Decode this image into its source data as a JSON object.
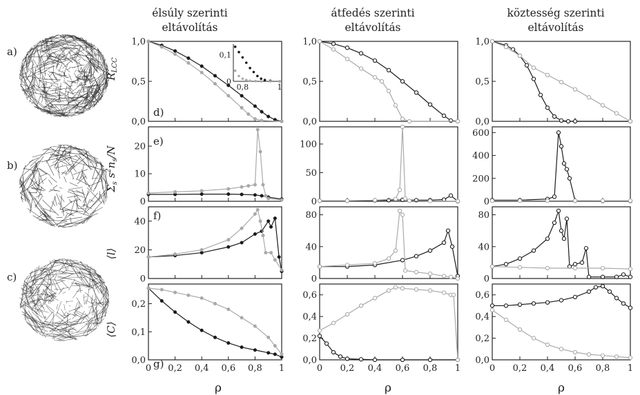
{
  "colors": {
    "black_series": "#1a1a1a",
    "gray_series": "#a9a9a9",
    "frame": "#222222"
  },
  "column_titles": [
    [
      "élsúly szerinti",
      "eltávolítás"
    ],
    [
      "átfedés szerinti",
      "eltávolítás"
    ],
    [
      "köztesség szerinti",
      "eltávolítás"
    ]
  ],
  "row_labels": [
    "R_LCC",
    "Σs s²ns/N",
    "⟨l⟩",
    "⟨C⟩"
  ],
  "panel_letters": [
    "d)",
    "e)",
    "f)",
    "g)"
  ],
  "network_labels": [
    "a)",
    "b)",
    "c)"
  ],
  "xlabel": "ρ",
  "chart_data": [
    {
      "type": "scatter",
      "panel": "R_LCC / élsúly",
      "xlim": [
        0,
        1
      ],
      "ylim": [
        0,
        1
      ],
      "xticks": [
        "0",
        "0,2",
        "0,4",
        "0,6",
        "0,8",
        "1"
      ],
      "yticks": [
        "0,0",
        "0,5",
        "1,0"
      ],
      "ytick_values": [
        0,
        0.5,
        1
      ],
      "series": [
        {
          "color": "black",
          "marker": "filled",
          "x": [
            0,
            0.1,
            0.2,
            0.3,
            0.4,
            0.5,
            0.6,
            0.7,
            0.8,
            0.85,
            0.9,
            0.95,
            1
          ],
          "y": [
            1,
            0.95,
            0.88,
            0.79,
            0.69,
            0.57,
            0.45,
            0.32,
            0.19,
            0.12,
            0.06,
            0.02,
            0
          ]
        },
        {
          "color": "gray",
          "marker": "filled",
          "x": [
            0,
            0.1,
            0.2,
            0.3,
            0.4,
            0.5,
            0.6,
            0.7,
            0.75,
            0.8,
            0.85,
            1
          ],
          "y": [
            1,
            0.93,
            0.84,
            0.73,
            0.61,
            0.47,
            0.32,
            0.17,
            0.09,
            0.03,
            0.01,
            0
          ]
        }
      ],
      "inset": {
        "xlim": [
          0.75,
          1
        ],
        "ylim": [
          0,
          0.14
        ],
        "xticks": [
          "0,8",
          "1"
        ],
        "xtick_values": [
          0.8,
          1
        ],
        "yticks": [
          "0",
          "0,1"
        ],
        "ytick_values": [
          0,
          0.1
        ],
        "series": [
          {
            "color": "black",
            "x": [
              0.76,
              0.78,
              0.8,
              0.82,
              0.84,
              0.86,
              0.88,
              0.9,
              0.92,
              0.95,
              1
            ],
            "y": [
              0.13,
              0.11,
              0.09,
              0.07,
              0.05,
              0.035,
              0.02,
              0.01,
              0.005,
              0.002,
              0
            ]
          },
          {
            "color": "gray",
            "x": [
              0.76,
              0.78,
              0.8,
              0.82,
              0.84,
              0.87,
              0.9,
              0.95,
              1
            ],
            "y": [
              0.04,
              0.02,
              0.01,
              0.005,
              0.002,
              0.001,
              0,
              0,
              0
            ]
          }
        ]
      }
    },
    {
      "type": "scatter",
      "panel": "R_LCC / átfedés",
      "xlim": [
        0,
        1
      ],
      "ylim": [
        0,
        1
      ],
      "xticks": [
        "0",
        "0,2",
        "0,4",
        "0,6",
        "0,8",
        "1"
      ],
      "yticks": [
        "0,0",
        "0,5",
        "1,0"
      ],
      "ytick_values": [
        0,
        0.5,
        1
      ],
      "series": [
        {
          "color": "black",
          "marker": "open",
          "x": [
            0,
            0.1,
            0.2,
            0.3,
            0.4,
            0.5,
            0.6,
            0.7,
            0.8,
            0.9,
            0.95,
            1
          ],
          "y": [
            1,
            0.97,
            0.92,
            0.85,
            0.76,
            0.64,
            0.5,
            0.36,
            0.21,
            0.07,
            0.01,
            0
          ]
        },
        {
          "color": "gray",
          "marker": "open",
          "x": [
            0,
            0.1,
            0.2,
            0.3,
            0.4,
            0.45,
            0.5,
            0.55,
            0.6,
            0.65,
            1
          ],
          "y": [
            1,
            0.9,
            0.78,
            0.66,
            0.55,
            0.5,
            0.38,
            0.2,
            0.03,
            0,
            0
          ]
        }
      ]
    },
    {
      "type": "scatter",
      "panel": "R_LCC / köztesség",
      "xlim": [
        0,
        1
      ],
      "ylim": [
        0,
        1
      ],
      "xticks": [
        "0",
        "0,2",
        "0,4",
        "0,6",
        "0,8",
        "1"
      ],
      "yticks": [
        "0,0",
        "0,5",
        "1,0"
      ],
      "ytick_values": [
        0,
        0.5,
        1
      ],
      "series": [
        {
          "color": "black",
          "marker": "open",
          "x": [
            0,
            0.1,
            0.15,
            0.2,
            0.25,
            0.3,
            0.35,
            0.4,
            0.45,
            0.5,
            0.55,
            0.6,
            1
          ],
          "y": [
            1,
            0.95,
            0.9,
            0.82,
            0.7,
            0.53,
            0.33,
            0.17,
            0.06,
            0.01,
            0,
            0,
            0
          ]
        },
        {
          "color": "gray",
          "marker": "open",
          "x": [
            0,
            0.1,
            0.2,
            0.3,
            0.4,
            0.5,
            0.6,
            0.7,
            0.8,
            0.9,
            1
          ],
          "y": [
            1,
            0.93,
            0.82,
            0.67,
            0.58,
            0.49,
            0.4,
            0.3,
            0.2,
            0.1,
            0
          ]
        }
      ]
    },
    {
      "type": "scatter",
      "panel": "Σs s²ns/N / élsúly",
      "xlim": [
        0,
        1
      ],
      "ylim": [
        0,
        27
      ],
      "xticks": [
        "0",
        "0,2",
        "0,4",
        "0,6",
        "0,8",
        "1"
      ],
      "yticks": [
        "0",
        "10",
        "20"
      ],
      "ytick_values": [
        0,
        10,
        20
      ],
      "series": [
        {
          "color": "black",
          "marker": "filled",
          "x": [
            0,
            0.2,
            0.4,
            0.6,
            0.7,
            0.8,
            0.85,
            0.9,
            1
          ],
          "y": [
            2.5,
            2.5,
            2.6,
            2.6,
            2.5,
            2.3,
            2,
            1.5,
            0.8
          ]
        },
        {
          "color": "gray",
          "marker": "filled",
          "x": [
            0,
            0.2,
            0.4,
            0.6,
            0.7,
            0.75,
            0.8,
            0.82,
            0.84,
            0.86,
            0.88,
            0.9,
            1
          ],
          "y": [
            3,
            3.4,
            3.8,
            4.5,
            5.2,
            5.6,
            6,
            26,
            18,
            6,
            2,
            1,
            0.5
          ]
        }
      ]
    },
    {
      "type": "scatter",
      "panel": "Σs s²ns/N / átfedés",
      "xlim": [
        0,
        1
      ],
      "ylim": [
        0,
        130
      ],
      "xticks": [
        "0",
        "0,2",
        "0,4",
        "0,6",
        "0,8",
        "1"
      ],
      "yticks": [
        "0",
        "50",
        "100"
      ],
      "ytick_values": [
        0,
        50,
        100
      ],
      "series": [
        {
          "color": "black",
          "marker": "open",
          "x": [
            0,
            0.2,
            0.4,
            0.5,
            0.6,
            0.7,
            0.8,
            0.9,
            0.95,
            1
          ],
          "y": [
            1,
            1,
            1.5,
            2,
            2.5,
            2,
            2,
            3,
            10,
            0
          ]
        },
        {
          "color": "gray",
          "marker": "open",
          "x": [
            0,
            0.2,
            0.4,
            0.55,
            0.58,
            0.6,
            0.62,
            0.65,
            0.8,
            1
          ],
          "y": [
            1,
            1,
            2,
            4,
            20,
            130,
            5,
            1,
            0.5,
            0.3
          ]
        }
      ]
    },
    {
      "type": "scatter",
      "panel": "Σs s²ns/N / köztesség",
      "xlim": [
        0,
        1
      ],
      "ylim": [
        0,
        650
      ],
      "xticks": [
        "0",
        "0,2",
        "0,4",
        "0,6",
        "0,8",
        "1"
      ],
      "yticks": [
        "0",
        "200",
        "400",
        "600"
      ],
      "ytick_values": [
        0,
        200,
        400,
        600
      ],
      "series": [
        {
          "color": "black",
          "marker": "open",
          "x": [
            0,
            0.2,
            0.4,
            0.45,
            0.48,
            0.5,
            0.52,
            0.54,
            0.56,
            0.6,
            0.8,
            1
          ],
          "y": [
            10,
            10,
            20,
            40,
            600,
            480,
            330,
            280,
            200,
            5,
            3,
            3
          ]
        },
        {
          "color": "gray",
          "marker": "open",
          "x": [
            0,
            0.2,
            0.4,
            0.6,
            0.8,
            1
          ],
          "y": [
            5,
            5,
            5,
            5,
            5,
            5
          ]
        }
      ]
    },
    {
      "type": "scatter",
      "panel": "⟨l⟩ / élsúly",
      "xlim": [
        0,
        1
      ],
      "ylim": [
        0,
        50
      ],
      "xticks": [
        "0",
        "0,2",
        "0,4",
        "0,6",
        "0,8",
        "1"
      ],
      "yticks": [
        "0",
        "20",
        "40"
      ],
      "ytick_values": [
        0,
        20,
        40
      ],
      "series": [
        {
          "color": "black",
          "marker": "filled",
          "x": [
            0,
            0.2,
            0.4,
            0.6,
            0.7,
            0.8,
            0.85,
            0.9,
            0.92,
            0.95,
            0.98,
            1
          ],
          "y": [
            15,
            16,
            18,
            22,
            25,
            31,
            33,
            40,
            36,
            42,
            15,
            5
          ]
        },
        {
          "color": "gray",
          "marker": "filled",
          "x": [
            0,
            0.2,
            0.4,
            0.6,
            0.7,
            0.8,
            0.82,
            0.84,
            0.86,
            0.88,
            0.92,
            0.95,
            1
          ],
          "y": [
            15,
            17,
            20,
            27,
            35,
            45,
            48,
            40,
            30,
            18,
            18,
            13,
            6
          ]
        }
      ]
    },
    {
      "type": "scatter",
      "panel": "⟨l⟩ / átfedés",
      "xlim": [
        0,
        1
      ],
      "ylim": [
        0,
        90
      ],
      "xticks": [
        "0",
        "0,2",
        "0,4",
        "0,6",
        "0,8",
        "1"
      ],
      "yticks": [
        "0",
        "40",
        "80"
      ],
      "ytick_values": [
        0,
        40,
        80
      ],
      "series": [
        {
          "color": "black",
          "marker": "open",
          "x": [
            0,
            0.2,
            0.4,
            0.6,
            0.7,
            0.8,
            0.9,
            0.93,
            0.96,
            1
          ],
          "y": [
            15,
            15,
            17,
            23,
            28,
            35,
            45,
            60,
            40,
            3
          ]
        },
        {
          "color": "gray",
          "marker": "open",
          "x": [
            0,
            0.2,
            0.4,
            0.5,
            0.55,
            0.58,
            0.6,
            0.62,
            0.7,
            0.8,
            0.9,
            0.95,
            1
          ],
          "y": [
            15,
            17,
            19,
            25,
            35,
            85,
            80,
            10,
            8,
            6,
            3,
            2,
            0
          ]
        }
      ]
    },
    {
      "type": "scatter",
      "panel": "⟨l⟩ / köztesség",
      "xlim": [
        0,
        1
      ],
      "ylim": [
        0,
        90
      ],
      "xticks": [
        "0",
        "0,2",
        "0,4",
        "0,6",
        "0,8",
        "1"
      ],
      "yticks": [
        "0",
        "40",
        "80"
      ],
      "ytick_values": [
        0,
        40,
        80
      ],
      "series": [
        {
          "color": "black",
          "marker": "open",
          "x": [
            0,
            0.1,
            0.2,
            0.3,
            0.4,
            0.45,
            0.48,
            0.5,
            0.52,
            0.54,
            0.56,
            0.6,
            0.65,
            0.68,
            0.7,
            0.8,
            0.9,
            0.95,
            1
          ],
          "y": [
            15,
            18,
            25,
            35,
            50,
            70,
            85,
            60,
            50,
            75,
            15,
            18,
            20,
            38,
            2,
            2,
            2,
            5,
            2
          ]
        },
        {
          "color": "gray",
          "marker": "open",
          "x": [
            0,
            0.2,
            0.4,
            0.6,
            0.8,
            1
          ],
          "y": [
            15,
            14,
            13,
            13,
            13,
            12
          ]
        }
      ]
    },
    {
      "type": "scatter",
      "panel": "⟨C⟩ / élsúly",
      "xlim": [
        0,
        1
      ],
      "ylim": [
        0,
        0.27
      ],
      "xticks": [
        "0",
        "0,2",
        "0,4",
        "0,6",
        "0,8",
        "1"
      ],
      "yticks": [
        "0,0",
        "0,1",
        "0,2"
      ],
      "ytick_values": [
        0,
        0.1,
        0.2
      ],
      "series": [
        {
          "color": "black",
          "marker": "filled",
          "x": [
            0,
            0.1,
            0.2,
            0.3,
            0.4,
            0.5,
            0.6,
            0.7,
            0.8,
            0.9,
            0.95,
            1
          ],
          "y": [
            0.255,
            0.21,
            0.17,
            0.135,
            0.105,
            0.08,
            0.06,
            0.045,
            0.035,
            0.025,
            0.02,
            0.01
          ]
        },
        {
          "color": "gray",
          "marker": "filled",
          "x": [
            0,
            0.1,
            0.2,
            0.3,
            0.4,
            0.5,
            0.6,
            0.7,
            0.8,
            0.9,
            0.95,
            1
          ],
          "y": [
            0.255,
            0.25,
            0.24,
            0.23,
            0.22,
            0.2,
            0.18,
            0.15,
            0.12,
            0.08,
            0.05,
            0.02
          ]
        }
      ]
    },
    {
      "type": "scatter",
      "panel": "⟨C⟩ / átfedés",
      "xlim": [
        0,
        1
      ],
      "ylim": [
        0,
        0.7
      ],
      "xticks": [
        "0",
        "0,2",
        "0,4",
        "0,6",
        "0,8",
        "1"
      ],
      "yticks": [
        "0,0",
        "0,2",
        "0,4",
        "0,6"
      ],
      "ytick_values": [
        0,
        0.2,
        0.4,
        0.6
      ],
      "series": [
        {
          "color": "black",
          "marker": "open",
          "x": [
            0,
            0.05,
            0.1,
            0.15,
            0.2,
            0.3,
            0.4,
            0.6,
            0.8,
            1
          ],
          "y": [
            0.22,
            0.15,
            0.07,
            0.03,
            0.01,
            0.005,
            0,
            0,
            0,
            0
          ]
        },
        {
          "color": "gray",
          "marker": "open",
          "x": [
            0,
            0.1,
            0.2,
            0.3,
            0.4,
            0.5,
            0.55,
            0.6,
            0.7,
            0.8,
            0.9,
            0.95,
            0.97,
            1
          ],
          "y": [
            0.27,
            0.34,
            0.42,
            0.5,
            0.57,
            0.64,
            0.67,
            0.66,
            0.65,
            0.64,
            0.62,
            0.6,
            0.6,
            0
          ]
        }
      ]
    },
    {
      "type": "scatter",
      "panel": "⟨C⟩ / köztesség",
      "xlim": [
        0,
        1
      ],
      "ylim": [
        0,
        0.7
      ],
      "xticks": [
        "0",
        "0,2",
        "0,4",
        "0,6",
        "0,8",
        "1"
      ],
      "yticks": [
        "0,0",
        "0,2",
        "0,4",
        "0,6"
      ],
      "ytick_values": [
        0,
        0.2,
        0.4,
        0.6
      ],
      "series": [
        {
          "color": "black",
          "marker": "open",
          "x": [
            0,
            0.1,
            0.2,
            0.3,
            0.4,
            0.5,
            0.6,
            0.7,
            0.75,
            0.8,
            0.85,
            0.9,
            0.95,
            1
          ],
          "y": [
            0.5,
            0.5,
            0.51,
            0.52,
            0.53,
            0.55,
            0.58,
            0.63,
            0.67,
            0.68,
            0.63,
            0.57,
            0.52,
            0.48
          ]
        },
        {
          "color": "gray",
          "marker": "open",
          "x": [
            0,
            0.1,
            0.2,
            0.3,
            0.4,
            0.5,
            0.6,
            0.7,
            0.8,
            0.9,
            1
          ],
          "y": [
            0.46,
            0.37,
            0.28,
            0.2,
            0.14,
            0.1,
            0.07,
            0.05,
            0.04,
            0.03,
            0.02
          ]
        }
      ]
    }
  ]
}
